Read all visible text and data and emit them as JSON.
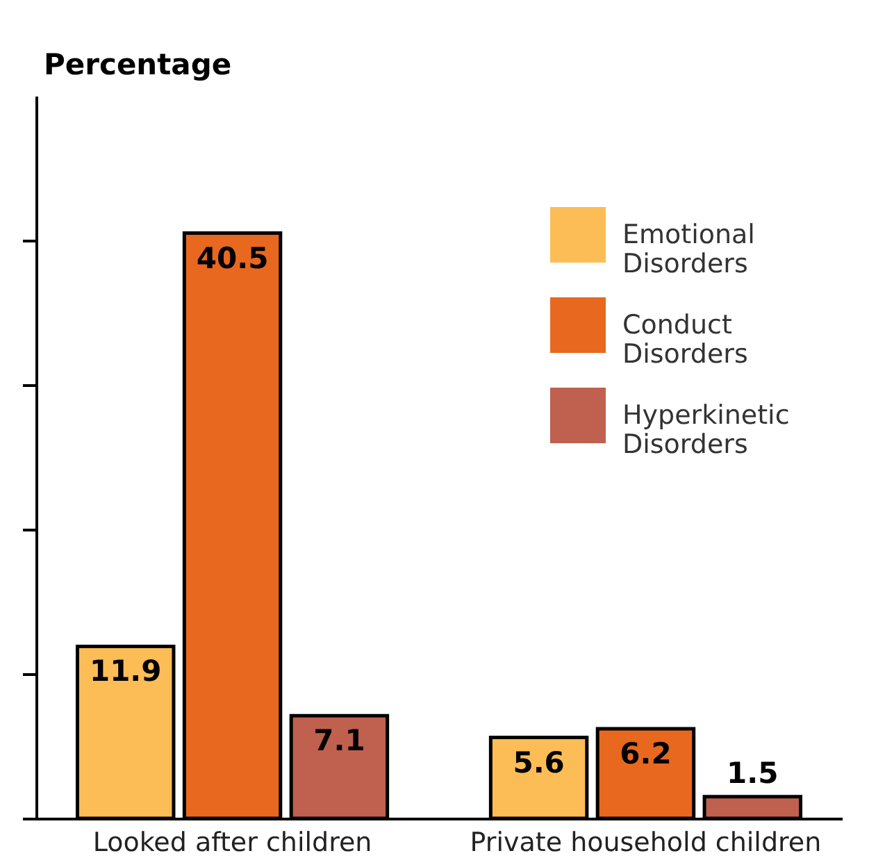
{
  "chart_data": {
    "type": "bar",
    "ylabel": "Percentage",
    "categories": [
      "Looked after children",
      "Private household children"
    ],
    "series": [
      {
        "name": "Emotional Disorders",
        "color": "#fdbd56",
        "values": [
          11.9,
          5.6
        ]
      },
      {
        "name": "Conduct Disorders",
        "color": "#e8681f",
        "values": [
          40.5,
          6.2
        ]
      },
      {
        "name": "Hyperkinetic Disorders",
        "color": "#c0604f",
        "values": [
          7.1,
          1.5
        ]
      }
    ],
    "ylim": [
      0,
      50
    ],
    "yticks": [
      {
        "value": 0,
        "label": null
      },
      {
        "value": 10,
        "label": null
      },
      {
        "value": 20,
        "label": null
      },
      {
        "value": 30,
        "label": null
      },
      {
        "value": 40,
        "label": null
      }
    ],
    "tick_labels": "x",
    "data_labels": true,
    "legend": "right"
  }
}
